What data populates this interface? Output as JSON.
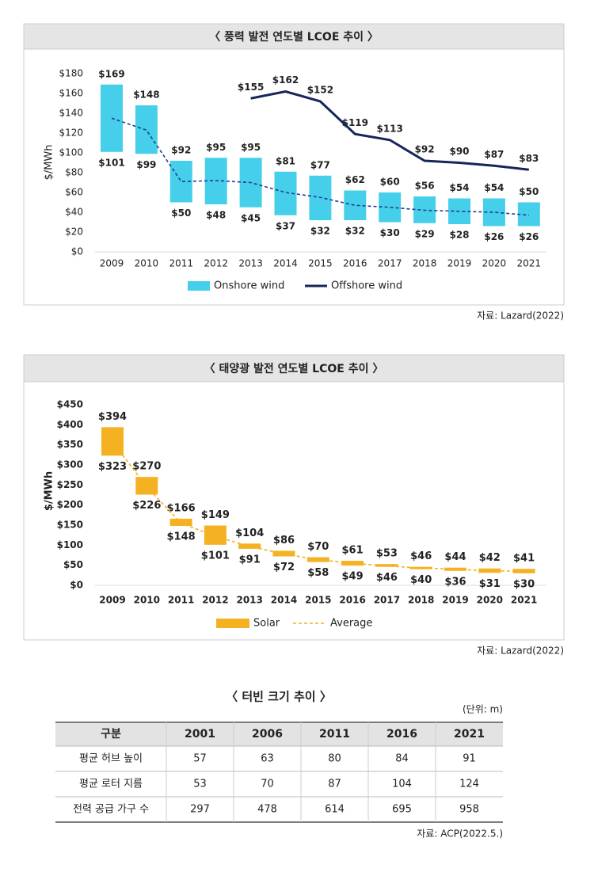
{
  "chart_data": [
    {
      "type": "range_bar",
      "title": "〈 풍력 발전 연도별 LCOE 추이 〉",
      "y_label": "$/MWh",
      "source": "자료: Lazard(2022)",
      "categories": [
        "2009",
        "2010",
        "2011",
        "2012",
        "2013",
        "2014",
        "2015",
        "2016",
        "2017",
        "2018",
        "2019",
        "2020",
        "2021"
      ],
      "ylim": [
        0,
        180
      ],
      "yticks": [
        {
          "value": 0,
          "label": "$0"
        },
        {
          "value": 20,
          "label": "$20"
        },
        {
          "value": 40,
          "label": "$40"
        },
        {
          "value": 60,
          "label": "$60"
        },
        {
          "value": 80,
          "label": "$80"
        },
        {
          "value": 100,
          "label": "$100"
        },
        {
          "value": 120,
          "label": "$120"
        },
        {
          "value": 140,
          "label": "$140"
        },
        {
          "value": 160,
          "label": "$160"
        },
        {
          "value": 180,
          "label": "$180"
        }
      ],
      "grid": false,
      "series": [
        {
          "name": "Onshore wind",
          "type": "range",
          "color": "#45cfea",
          "high": [
            169,
            148,
            92,
            95,
            95,
            81,
            77,
            62,
            60,
            56,
            54,
            54,
            50
          ],
          "high_labels": [
            "$169",
            "$148",
            "$92",
            "$95",
            "$95",
            "$81",
            "$77",
            "$62",
            "$60",
            "$56",
            "$54",
            "$54",
            "$50"
          ],
          "low": [
            101,
            99,
            50,
            48,
            45,
            37,
            32,
            32,
            30,
            29,
            28,
            26,
            26
          ],
          "low_labels": [
            "$101",
            "$99",
            "$50",
            "$48",
            "$45",
            "$37",
            "$32",
            "$32",
            "$30",
            "$29",
            "$28",
            "$26",
            "$26"
          ]
        },
        {
          "type": "line",
          "color": "#1f3f8f",
          "dash": true,
          "values": [
            135,
            123,
            71,
            72,
            70,
            60,
            55,
            47,
            45,
            42,
            41,
            40,
            37
          ]
        },
        {
          "name": "Offshore wind",
          "type": "line",
          "color": "#16265a",
          "dash": false,
          "values": [
            null,
            null,
            null,
            null,
            155,
            162,
            152,
            119,
            113,
            92,
            90,
            87,
            83
          ],
          "value_labels": [
            null,
            null,
            null,
            null,
            "$155",
            "$162",
            "$152",
            "$119",
            "$113",
            "$92",
            "$90",
            "$87",
            "$83"
          ]
        }
      ]
    },
    {
      "type": "range_bar",
      "title": "〈 태양광 발전 연도별 LCOE 추이 〉",
      "y_label": "$/MWh",
      "source": "자료: Lazard(2022)",
      "categories": [
        "2009",
        "2010",
        "2011",
        "2012",
        "2013",
        "2014",
        "2015",
        "2016",
        "2017",
        "2018",
        "2019",
        "2020",
        "2021"
      ],
      "ylim": [
        0,
        450
      ],
      "yticks": [
        {
          "value": 0,
          "label": "$0"
        },
        {
          "value": 50,
          "label": "$50"
        },
        {
          "value": 100,
          "label": "$100"
        },
        {
          "value": 150,
          "label": "$150"
        },
        {
          "value": 200,
          "label": "$200"
        },
        {
          "value": 250,
          "label": "$250"
        },
        {
          "value": 300,
          "label": "$300"
        },
        {
          "value": 350,
          "label": "$350"
        },
        {
          "value": 400,
          "label": "$400"
        },
        {
          "value": 450,
          "label": "$450"
        }
      ],
      "grid": false,
      "series": [
        {
          "name": "Solar",
          "type": "range",
          "color": "#f4b223",
          "high": [
            394,
            270,
            166,
            149,
            104,
            86,
            70,
            61,
            53,
            46,
            44,
            42,
            41
          ],
          "high_labels": [
            "$394",
            "$270",
            "$166",
            "$149",
            "$104",
            "$86",
            "$70",
            "$61",
            "$53",
            "$46",
            "$44",
            "$42",
            "$41"
          ],
          "low": [
            323,
            226,
            148,
            101,
            91,
            72,
            58,
            49,
            46,
            40,
            36,
            31,
            30
          ],
          "low_labels": [
            "$323",
            "$226",
            "$148",
            "$101",
            "$91",
            "$72",
            "$58",
            "$49",
            "$46",
            "$40",
            "$36",
            "$31",
            "$30"
          ]
        },
        {
          "name": "Average",
          "type": "line",
          "color": "#f4b223",
          "dash": true,
          "values": [
            358,
            245,
            155,
            122,
            97,
            78,
            64,
            55,
            48,
            43,
            40,
            36,
            35
          ]
        }
      ]
    }
  ],
  "table": {
    "title": "〈 터빈 크기 추이 〉",
    "unit": "(단위: m)",
    "source": "자료: ACP(2022.5.)",
    "header": [
      "구분",
      "2001",
      "2006",
      "2011",
      "2016",
      "2021"
    ],
    "rows": [
      [
        "평균 허브 높이",
        57,
        63,
        80,
        84,
        91
      ],
      [
        "평균 로터 지름",
        53,
        70,
        87,
        104,
        124
      ],
      [
        "전력 공급 가구 수",
        297,
        478,
        614,
        695,
        958
      ]
    ]
  }
}
